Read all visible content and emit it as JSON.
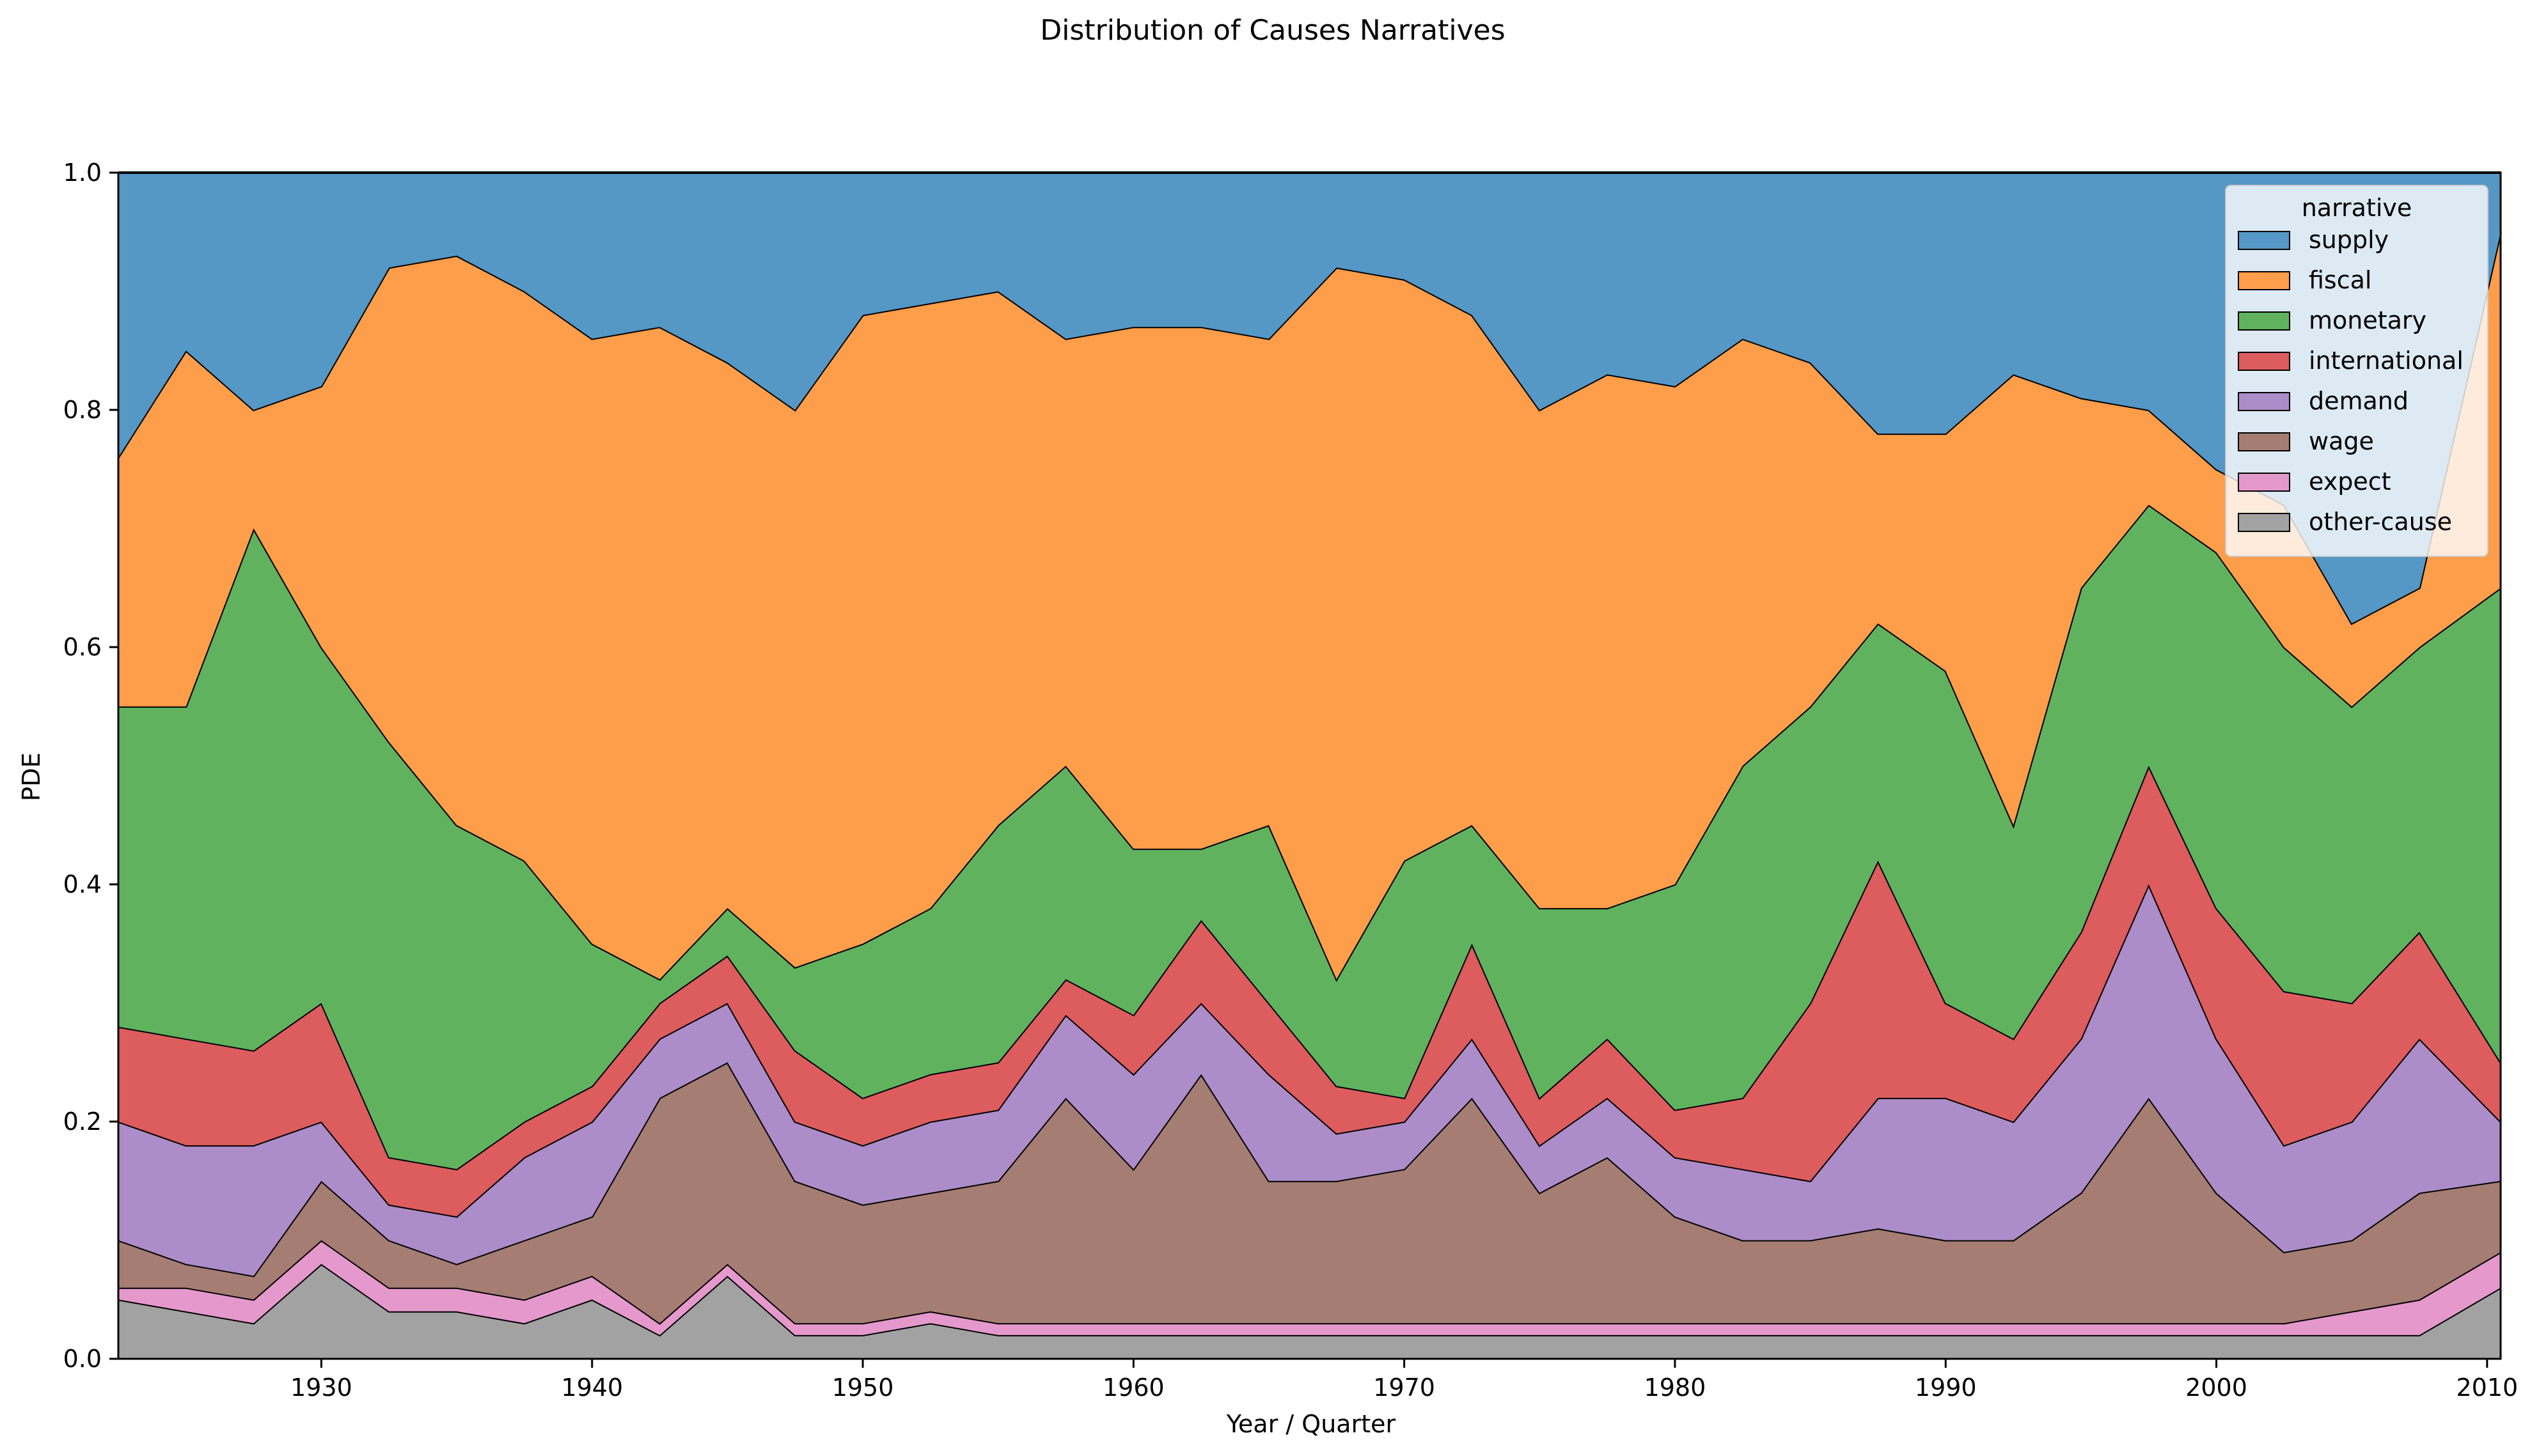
{
  "chart_data": {
    "type": "area",
    "stacked": true,
    "normalized": true,
    "title": "Distribution of Causes Narratives",
    "xlabel": "Year / Quarter",
    "ylabel": "PDE",
    "xlim": [
      1922.5,
      2010.5
    ],
    "ylim": [
      0,
      1
    ],
    "x_ticks": [
      1930,
      1940,
      1950,
      1960,
      1970,
      1980,
      1990,
      2000,
      2010
    ],
    "y_ticks": [
      "0.0",
      "0.2",
      "0.4",
      "0.6",
      "0.8",
      "1.0"
    ],
    "grid": false,
    "legend": {
      "title": "narrative",
      "placement": "top-right",
      "entries": [
        "supply",
        "fiscal",
        "monetary",
        "international",
        "demand",
        "wage",
        "expect",
        "other-cause"
      ]
    },
    "colors": {
      "supply": "#5597c5",
      "fiscal": "#fe9d4a",
      "monetary": "#60b25f",
      "international": "#dd5c5d",
      "demand": "#ac8cc9",
      "wage": "#a57d73",
      "expect": "#e598cc",
      "other-cause": "#a2a2a2"
    },
    "x": [
      1922.5,
      1925,
      1927.5,
      1930,
      1932.5,
      1935,
      1937.5,
      1940,
      1942.5,
      1945,
      1947.5,
      1950,
      1952.5,
      1955,
      1957.5,
      1960,
      1962.5,
      1965,
      1967.5,
      1970,
      1972.5,
      1975,
      1977.5,
      1980,
      1982.5,
      1985,
      1987.5,
      1990,
      1992.5,
      1995,
      1997.5,
      2000,
      2002.5,
      2005,
      2007.5,
      2010.5
    ],
    "cumulative_tops": {
      "other-cause": [
        0.05,
        0.04,
        0.03,
        0.08,
        0.04,
        0.04,
        0.03,
        0.05,
        0.02,
        0.07,
        0.02,
        0.02,
        0.03,
        0.02,
        0.02,
        0.02,
        0.02,
        0.02,
        0.02,
        0.02,
        0.02,
        0.02,
        0.02,
        0.02,
        0.02,
        0.02,
        0.02,
        0.02,
        0.02,
        0.02,
        0.02,
        0.02,
        0.02,
        0.02,
        0.02,
        0.06
      ],
      "expect": [
        0.06,
        0.06,
        0.05,
        0.1,
        0.06,
        0.06,
        0.05,
        0.07,
        0.03,
        0.08,
        0.03,
        0.03,
        0.04,
        0.03,
        0.03,
        0.03,
        0.03,
        0.03,
        0.03,
        0.03,
        0.03,
        0.03,
        0.03,
        0.03,
        0.03,
        0.03,
        0.03,
        0.03,
        0.03,
        0.03,
        0.03,
        0.03,
        0.03,
        0.04,
        0.05,
        0.09
      ],
      "wage": [
        0.1,
        0.08,
        0.07,
        0.15,
        0.1,
        0.08,
        0.1,
        0.12,
        0.22,
        0.25,
        0.15,
        0.13,
        0.14,
        0.15,
        0.22,
        0.16,
        0.24,
        0.15,
        0.15,
        0.16,
        0.22,
        0.14,
        0.17,
        0.12,
        0.1,
        0.1,
        0.11,
        0.1,
        0.1,
        0.14,
        0.22,
        0.14,
        0.09,
        0.1,
        0.14,
        0.15
      ],
      "demand": [
        0.2,
        0.18,
        0.18,
        0.2,
        0.13,
        0.12,
        0.17,
        0.2,
        0.27,
        0.3,
        0.2,
        0.18,
        0.2,
        0.21,
        0.29,
        0.24,
        0.3,
        0.24,
        0.19,
        0.2,
        0.27,
        0.18,
        0.22,
        0.17,
        0.16,
        0.15,
        0.22,
        0.22,
        0.2,
        0.27,
        0.4,
        0.27,
        0.18,
        0.2,
        0.27,
        0.2
      ],
      "international": [
        0.28,
        0.27,
        0.26,
        0.3,
        0.17,
        0.16,
        0.2,
        0.23,
        0.3,
        0.34,
        0.26,
        0.22,
        0.24,
        0.25,
        0.32,
        0.29,
        0.37,
        0.3,
        0.23,
        0.22,
        0.35,
        0.22,
        0.27,
        0.21,
        0.22,
        0.3,
        0.42,
        0.3,
        0.27,
        0.36,
        0.5,
        0.38,
        0.31,
        0.3,
        0.36,
        0.25
      ],
      "monetary": [
        0.55,
        0.55,
        0.7,
        0.6,
        0.52,
        0.45,
        0.42,
        0.35,
        0.32,
        0.38,
        0.33,
        0.35,
        0.38,
        0.45,
        0.5,
        0.43,
        0.43,
        0.45,
        0.32,
        0.42,
        0.45,
        0.38,
        0.38,
        0.4,
        0.5,
        0.55,
        0.62,
        0.58,
        0.45,
        0.65,
        0.72,
        0.68,
        0.6,
        0.55,
        0.6,
        0.65
      ],
      "fiscal": [
        0.76,
        0.85,
        0.8,
        0.82,
        0.92,
        0.93,
        0.9,
        0.86,
        0.87,
        0.84,
        0.8,
        0.88,
        0.89,
        0.9,
        0.86,
        0.87,
        0.87,
        0.86,
        0.92,
        0.91,
        0.88,
        0.8,
        0.83,
        0.82,
        0.86,
        0.84,
        0.78,
        0.78,
        0.83,
        0.81,
        0.8,
        0.75,
        0.72,
        0.62,
        0.65,
        0.95
      ],
      "supply": [
        1,
        1,
        1,
        1,
        1,
        1,
        1,
        1,
        1,
        1,
        1,
        1,
        1,
        1,
        1,
        1,
        1,
        1,
        1,
        1,
        1,
        1,
        1,
        1,
        1,
        1,
        1,
        1,
        1,
        1,
        1,
        1,
        1,
        1,
        1,
        1
      ]
    }
  }
}
